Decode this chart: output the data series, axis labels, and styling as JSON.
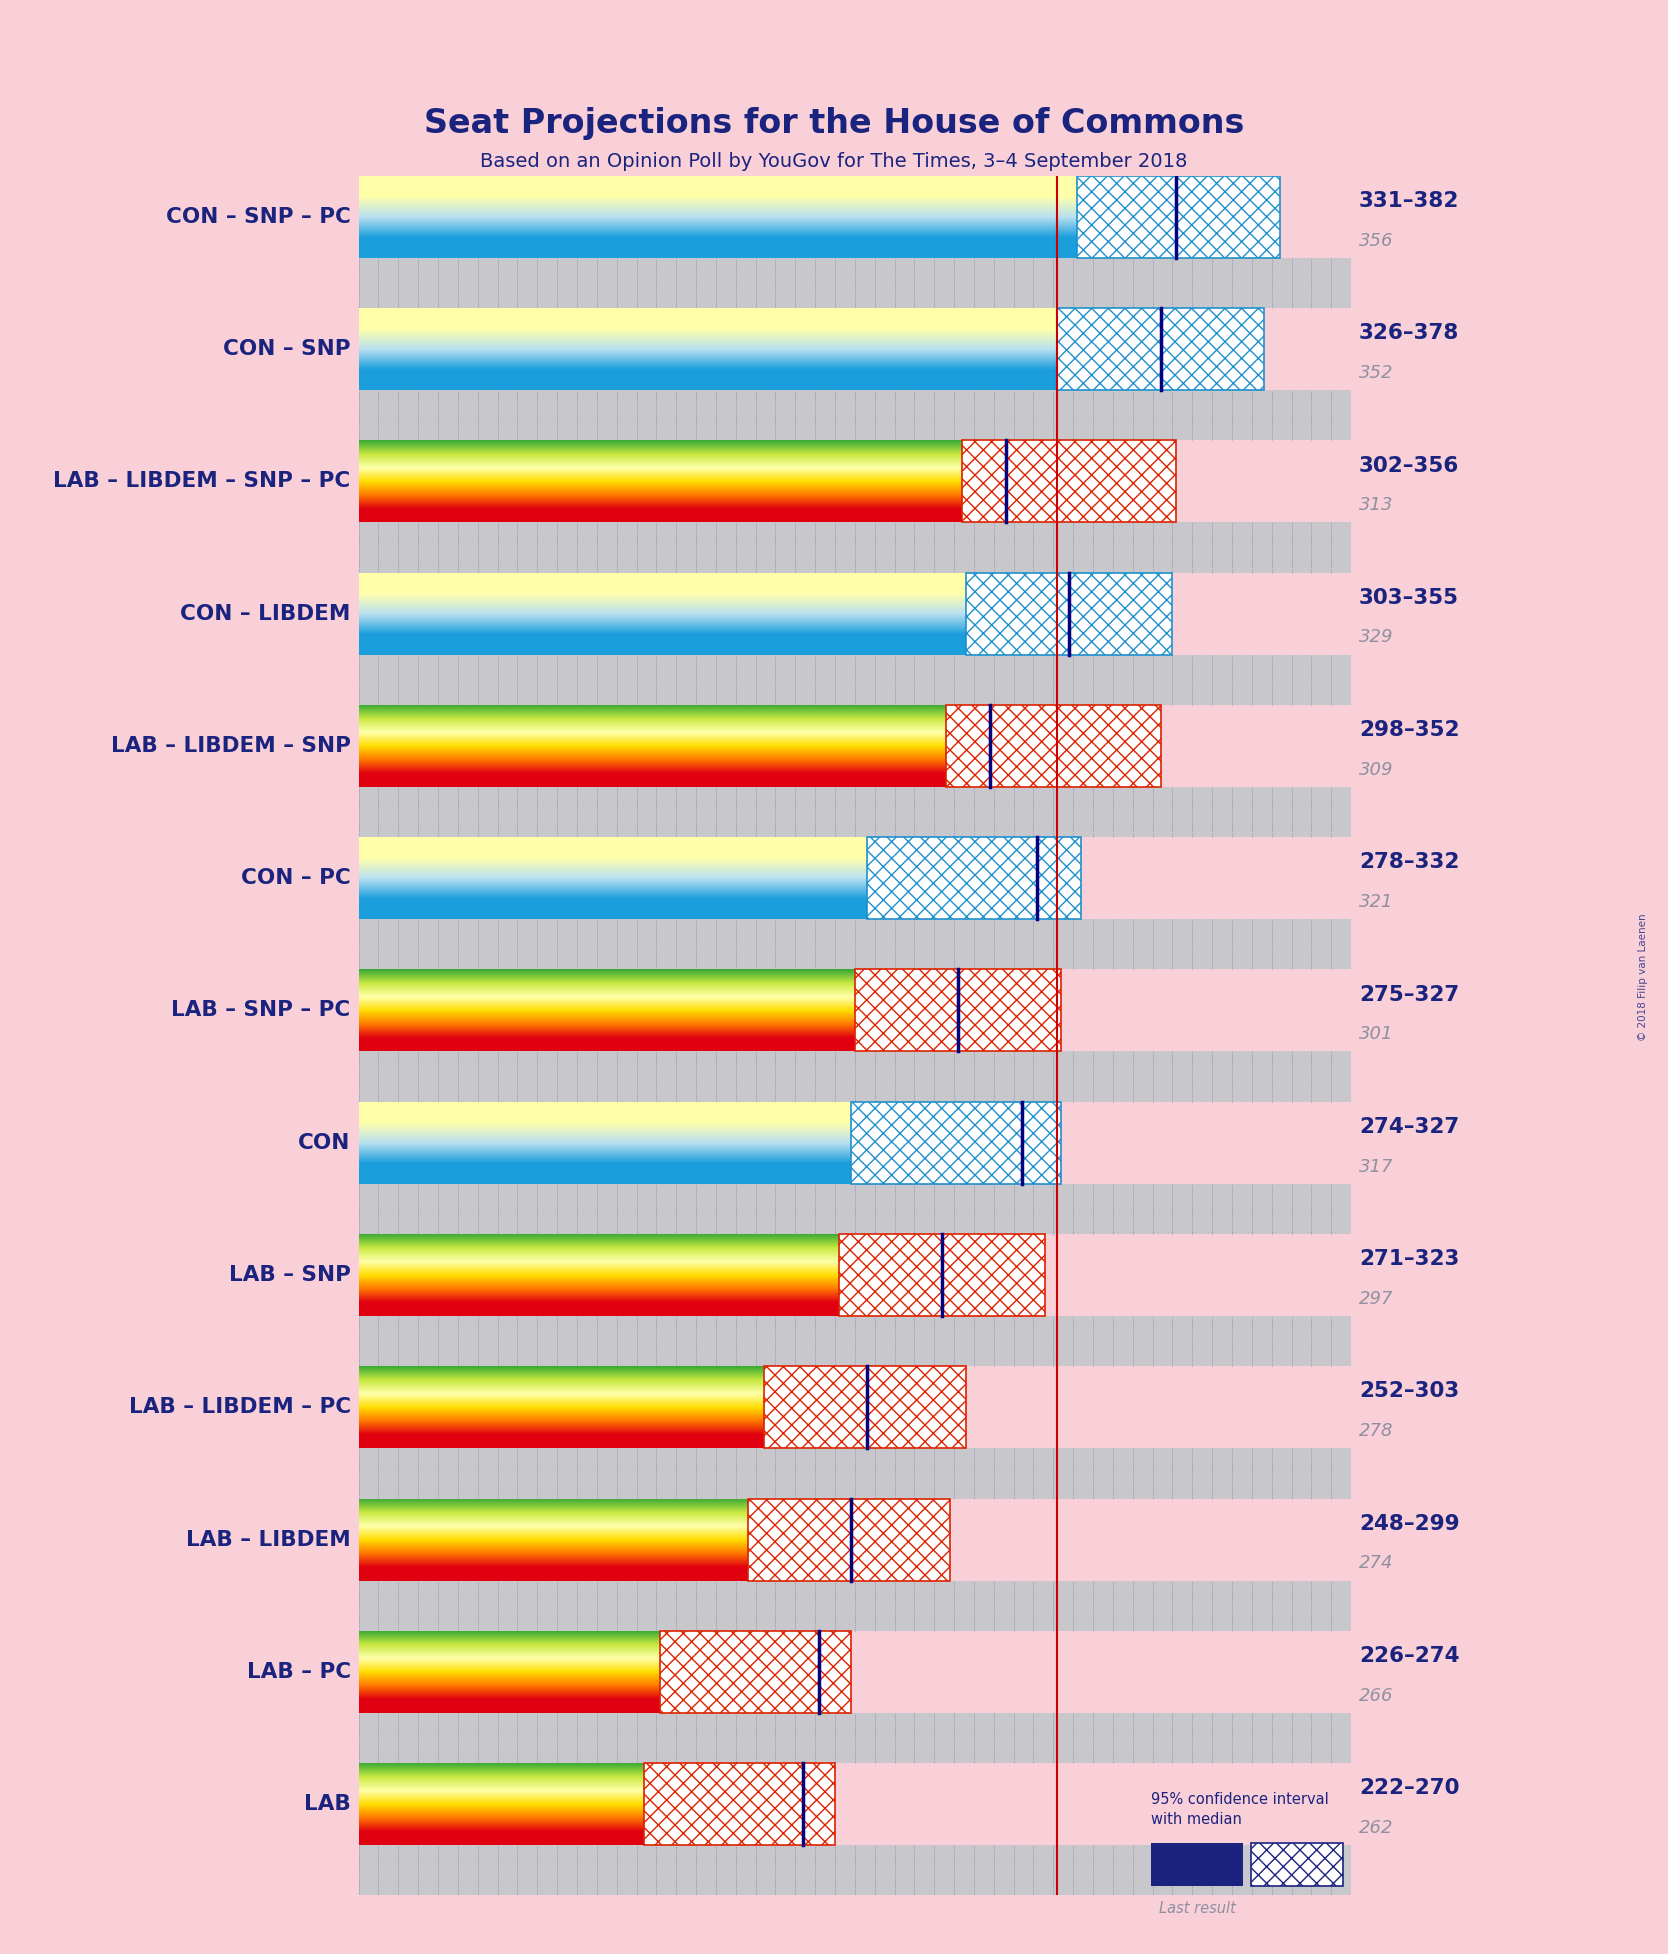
{
  "title": "Seat Projections for the House of Commons",
  "subtitle": "Based on an Opinion Poll by YouGov for The Times, 3–4 September 2018",
  "background_color": "#f9d0d8",
  "title_color": "#1a237e",
  "majority_line": 326,
  "x_min": 150,
  "x_max": 400,
  "coalitions": [
    {
      "label": "CON – SNP – PC",
      "ci_low": 331,
      "ci_high": 382,
      "median": 356,
      "type": "CON"
    },
    {
      "label": "CON – SNP",
      "ci_low": 326,
      "ci_high": 378,
      "median": 352,
      "type": "CON"
    },
    {
      "label": "LAB – LIBDEM – SNP – PC",
      "ci_low": 302,
      "ci_high": 356,
      "median": 313,
      "type": "LAB"
    },
    {
      "label": "CON – LIBDEM",
      "ci_low": 303,
      "ci_high": 355,
      "median": 329,
      "type": "CON"
    },
    {
      "label": "LAB – LIBDEM – SNP",
      "ci_low": 298,
      "ci_high": 352,
      "median": 309,
      "type": "LAB"
    },
    {
      "label": "CON – PC",
      "ci_low": 278,
      "ci_high": 332,
      "median": 321,
      "type": "CON"
    },
    {
      "label": "LAB – SNP – PC",
      "ci_low": 275,
      "ci_high": 327,
      "median": 301,
      "type": "LAB"
    },
    {
      "label": "CON",
      "ci_low": 274,
      "ci_high": 327,
      "median": 317,
      "type": "CON"
    },
    {
      "label": "LAB – SNP",
      "ci_low": 271,
      "ci_high": 323,
      "median": 297,
      "type": "LAB"
    },
    {
      "label": "LAB – LIBDEM – PC",
      "ci_low": 252,
      "ci_high": 303,
      "median": 278,
      "type": "LAB"
    },
    {
      "label": "LAB – LIBDEM",
      "ci_low": 248,
      "ci_high": 299,
      "median": 274,
      "type": "LAB"
    },
    {
      "label": "LAB – PC",
      "ci_low": 226,
      "ci_high": 274,
      "median": 266,
      "type": "LAB"
    },
    {
      "label": "LAB",
      "ci_low": 222,
      "ci_high": 270,
      "median": 262,
      "type": "LAB"
    }
  ],
  "con_gradient": [
    "#1a9edc",
    "#1a9edc",
    "#b8e0f0",
    "#ffffaa",
    "#ffffaa"
  ],
  "lab_gradient": [
    "#e00010",
    "#e00010",
    "#ff7700",
    "#ffdd00",
    "#ffffaa",
    "#c8e840",
    "#3aaa35"
  ],
  "con_hatch_color": "#2090cc",
  "lab_hatch_color": "#dd2200",
  "grid_dot_color": "#8888aa",
  "median_line_color": "#000080",
  "majority_line_color": "#cc0000",
  "range_color": "#1a237e",
  "median_num_color": "#9090a0",
  "last_result_color": "#9090a0",
  "copyright": "© 2018 Filip van Laenen"
}
